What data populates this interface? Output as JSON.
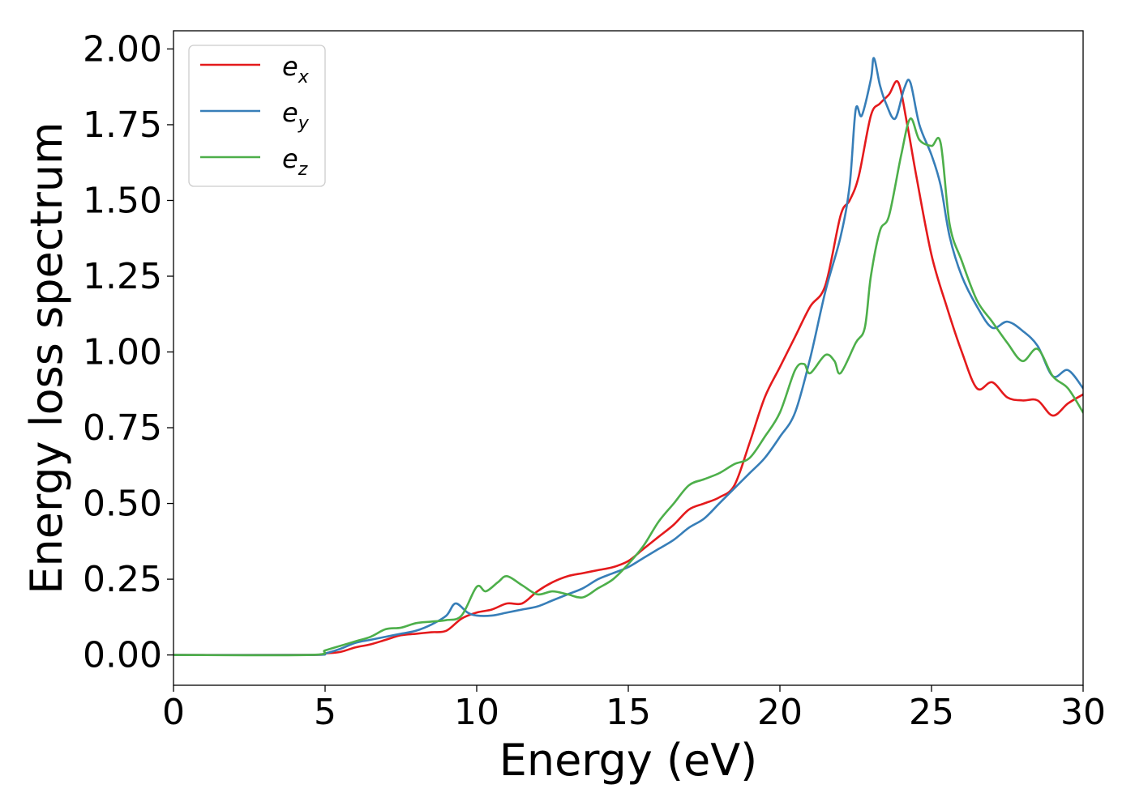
{
  "chart_data": {
    "type": "line",
    "xlabel": "Energy (eV)",
    "ylabel": "Energy loss spectrum",
    "xlim": [
      0,
      30
    ],
    "ylim": [
      -0.1,
      2.06
    ],
    "xticks": [
      "0",
      "5",
      "10",
      "15",
      "20",
      "25",
      "30"
    ],
    "yticks": [
      "0.00",
      "0.25",
      "0.50",
      "0.75",
      "1.00",
      "1.25",
      "1.50",
      "1.75",
      "2.00"
    ],
    "grid": false,
    "legend_position": "top-left",
    "series": [
      {
        "name": "e_x",
        "label_base": "e",
        "label_sub": "x",
        "color": "#e41a1c",
        "x": [
          0,
          4.5,
          5,
          5.5,
          6,
          6.5,
          7,
          7.5,
          8,
          8.5,
          9,
          9.5,
          10,
          10.5,
          11,
          11.5,
          12,
          12.5,
          13,
          13.5,
          14,
          14.5,
          15,
          15.5,
          16,
          16.5,
          17,
          17.5,
          18,
          18.5,
          19,
          19.5,
          20,
          20.5,
          21,
          21.5,
          22,
          22.3,
          22.6,
          23,
          23.3,
          23.6,
          23.9,
          24.2,
          24.5,
          25,
          25.5,
          26,
          26.5,
          27,
          27.5,
          28,
          28.5,
          29,
          29.5,
          30
        ],
        "y": [
          0.0,
          0.0,
          0.005,
          0.01,
          0.025,
          0.035,
          0.05,
          0.065,
          0.07,
          0.075,
          0.08,
          0.12,
          0.14,
          0.15,
          0.17,
          0.17,
          0.21,
          0.24,
          0.26,
          0.27,
          0.28,
          0.29,
          0.31,
          0.35,
          0.39,
          0.43,
          0.48,
          0.5,
          0.52,
          0.56,
          0.7,
          0.85,
          0.95,
          1.05,
          1.15,
          1.22,
          1.45,
          1.5,
          1.58,
          1.78,
          1.82,
          1.85,
          1.89,
          1.75,
          1.58,
          1.32,
          1.15,
          1.0,
          0.88,
          0.9,
          0.85,
          0.84,
          0.84,
          0.79,
          0.83,
          0.86
        ]
      },
      {
        "name": "e_y",
        "label_base": "e",
        "label_sub": "y",
        "color": "#377eb8",
        "x": [
          0,
          4.5,
          5,
          5.5,
          6,
          6.5,
          7,
          7.5,
          8,
          8.5,
          9,
          9.3,
          9.7,
          10,
          10.5,
          11,
          11.5,
          12,
          12.5,
          13,
          13.5,
          14,
          14.5,
          15,
          15.5,
          16,
          16.5,
          17,
          17.5,
          18,
          18.5,
          19,
          19.5,
          20,
          20.5,
          21,
          21.5,
          22,
          22.3,
          22.5,
          22.7,
          23,
          23.1,
          23.3,
          23.5,
          23.8,
          24.1,
          24.3,
          24.6,
          25,
          25.3,
          25.6,
          26,
          26.5,
          27,
          27.5,
          28,
          28.5,
          29,
          29.5,
          30
        ],
        "y": [
          0.0,
          0.0,
          0.005,
          0.02,
          0.04,
          0.05,
          0.06,
          0.07,
          0.08,
          0.1,
          0.13,
          0.17,
          0.14,
          0.13,
          0.13,
          0.14,
          0.15,
          0.16,
          0.18,
          0.2,
          0.22,
          0.25,
          0.27,
          0.29,
          0.32,
          0.35,
          0.38,
          0.42,
          0.45,
          0.5,
          0.55,
          0.6,
          0.65,
          0.72,
          0.8,
          0.98,
          1.2,
          1.38,
          1.55,
          1.8,
          1.78,
          1.9,
          1.97,
          1.88,
          1.82,
          1.77,
          1.87,
          1.89,
          1.75,
          1.65,
          1.55,
          1.38,
          1.25,
          1.15,
          1.08,
          1.1,
          1.07,
          1.02,
          0.92,
          0.94,
          0.88
        ]
      },
      {
        "name": "e_z",
        "label_base": "e",
        "label_sub": "z",
        "color": "#4daf4a",
        "x": [
          0,
          4.5,
          5,
          5.5,
          6,
          6.5,
          7,
          7.5,
          8,
          8.5,
          9,
          9.5,
          10,
          10.3,
          10.7,
          11,
          11.5,
          12,
          12.5,
          13,
          13.5,
          14,
          14.5,
          15,
          15.5,
          16,
          16.5,
          17,
          17.5,
          18,
          18.5,
          19,
          19.5,
          20,
          20.5,
          20.8,
          21,
          21.5,
          21.8,
          22,
          22.5,
          22.8,
          23,
          23.3,
          23.6,
          24,
          24.3,
          24.6,
          25,
          25.3,
          25.6,
          26,
          26.5,
          27,
          27.5,
          28,
          28.5,
          29,
          29.5,
          30
        ],
        "y": [
          0.0,
          0.0,
          0.015,
          0.03,
          0.045,
          0.06,
          0.085,
          0.09,
          0.105,
          0.11,
          0.115,
          0.13,
          0.225,
          0.21,
          0.24,
          0.26,
          0.23,
          0.2,
          0.21,
          0.2,
          0.19,
          0.22,
          0.25,
          0.3,
          0.36,
          0.44,
          0.5,
          0.56,
          0.58,
          0.6,
          0.63,
          0.65,
          0.72,
          0.8,
          0.94,
          0.96,
          0.93,
          0.99,
          0.97,
          0.93,
          1.03,
          1.08,
          1.25,
          1.4,
          1.45,
          1.65,
          1.77,
          1.7,
          1.68,
          1.69,
          1.42,
          1.3,
          1.17,
          1.1,
          1.03,
          0.97,
          1.01,
          0.92,
          0.88,
          0.8
        ]
      }
    ]
  }
}
